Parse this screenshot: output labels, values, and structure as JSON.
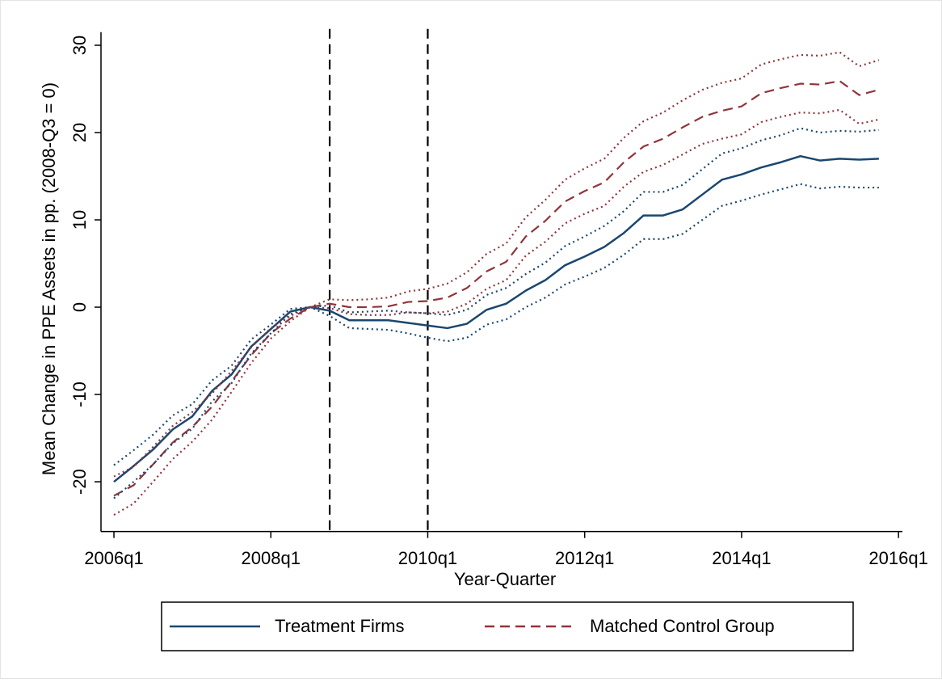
{
  "chart_data": {
    "type": "line",
    "ylabel": "Mean Change in PPE Assets in pp. (2008-Q3 = 0)",
    "xlabel": "Year-Quarter",
    "x": [
      2006,
      2006.25,
      2006.5,
      2006.75,
      2007,
      2007.25,
      2007.5,
      2007.75,
      2008,
      2008.25,
      2008.5,
      2008.75,
      2009,
      2009.25,
      2009.5,
      2009.75,
      2010,
      2010.25,
      2010.5,
      2010.75,
      2011,
      2011.25,
      2011.5,
      2011.75,
      2012,
      2012.25,
      2012.5,
      2012.75,
      2013,
      2013.25,
      2013.5,
      2013.75,
      2014,
      2014.25,
      2014.5,
      2014.75,
      2015,
      2015.25,
      2015.5,
      2015.75
    ],
    "series": [
      {
        "name": "Treatment Firms",
        "color": "#1a476f",
        "style": "solid",
        "values": [
          -20,
          -18.2,
          -16.3,
          -14,
          -12.5,
          -9.6,
          -7.7,
          -4.5,
          -2.5,
          -0.5,
          0,
          -0.4,
          -1.5,
          -1.5,
          -1.5,
          -1.8,
          -2.1,
          -2.4,
          -1.9,
          -0.3,
          0.4,
          1.9,
          3.1,
          4.8,
          5.8,
          6.9,
          8.5,
          10.5,
          10.5,
          11.2,
          12.9,
          14.6,
          15.2,
          16,
          16.6,
          17.3,
          16.8,
          17,
          16.9,
          17
        ]
      },
      {
        "name": "Matched Control Group",
        "color": "#90353b",
        "style": "dashed",
        "values": [
          -21.6,
          -20.4,
          -18,
          -15.5,
          -13.7,
          -11.4,
          -8.5,
          -5.5,
          -3,
          -1.3,
          0,
          0.4,
          0,
          0,
          0.1,
          0.6,
          0.7,
          1.1,
          2.2,
          4.1,
          5.2,
          8.1,
          9.9,
          12.1,
          13.3,
          14.3,
          16.6,
          18.4,
          19.3,
          20.6,
          21.8,
          22.5,
          23,
          24.5,
          25.1,
          25.6,
          25.5,
          25.9,
          24.3,
          24.9
        ]
      },
      {
        "color": "#1a476f",
        "style": "dotted",
        "values": [
          -18.1,
          -16.4,
          -14.6,
          -12.4,
          -11.1,
          -8.4,
          -6.7,
          -3.7,
          -2.0,
          -0.2,
          0,
          0.2,
          -0.6,
          -0.5,
          -0.4,
          -0.6,
          -0.7,
          -0.9,
          -0.3,
          1.4,
          2.2,
          3.8,
          5.1,
          7.0,
          8.1,
          9.3,
          11.0,
          13.2,
          13.2,
          14.0,
          15.8,
          17.6,
          18.2,
          19.1,
          19.7,
          20.5,
          20.0,
          20.2,
          20.1,
          20.3
        ]
      },
      {
        "color": "#1a476f",
        "style": "dotted",
        "values": [
          -21.9,
          -20.0,
          -18.0,
          -15.6,
          -13.9,
          -10.8,
          -8.7,
          -5.3,
          -3.0,
          -0.8,
          0,
          -1.0,
          -2.4,
          -2.5,
          -2.6,
          -3.0,
          -3.5,
          -3.9,
          -3.5,
          -2.0,
          -1.4,
          0.0,
          1.1,
          2.6,
          3.5,
          4.5,
          6.0,
          7.8,
          7.8,
          8.4,
          10.0,
          11.6,
          12.2,
          12.9,
          13.5,
          14.1,
          13.6,
          13.8,
          13.7,
          13.7
        ]
      },
      {
        "color": "#90353b",
        "style": "dotted",
        "values": [
          -19.4,
          -18.3,
          -16.0,
          -13.6,
          -12.0,
          -9.9,
          -7.3,
          -4.6,
          -2.4,
          -1.0,
          0,
          0.9,
          0.8,
          0.9,
          1.1,
          1.8,
          2.1,
          2.7,
          4.0,
          6.1,
          7.3,
          10.3,
          12.3,
          14.6,
          15.9,
          17.0,
          19.4,
          21.3,
          22.3,
          23.7,
          24.9,
          25.7,
          26.2,
          27.8,
          28.4,
          28.9,
          28.8,
          29.2,
          27.6,
          28.3
        ]
      },
      {
        "color": "#90353b",
        "style": "dotted",
        "values": [
          -23.8,
          -22.5,
          -20.0,
          -17.4,
          -15.4,
          -12.9,
          -9.7,
          -6.4,
          -3.6,
          -1.6,
          0,
          -0.1,
          -0.8,
          -0.9,
          -0.9,
          -0.6,
          -0.7,
          -0.5,
          0.4,
          2.1,
          3.1,
          5.9,
          7.5,
          9.6,
          10.7,
          11.6,
          13.8,
          15.5,
          16.3,
          17.5,
          18.7,
          19.3,
          19.8,
          21.2,
          21.8,
          22.3,
          22.2,
          22.6,
          21.0,
          21.5
        ]
      }
    ],
    "vlines": [
      2008.75,
      2010
    ],
    "xlim": [
      2005.835,
      2016.05
    ],
    "ylim": [
      -25.7,
      31.5
    ],
    "xticks": [
      {
        "value": 2006,
        "label": "2006q1"
      },
      {
        "value": 2008,
        "label": "2008q1"
      },
      {
        "value": 2010,
        "label": "2010q1"
      },
      {
        "value": 2012,
        "label": "2012q1"
      },
      {
        "value": 2014,
        "label": "2014q1"
      },
      {
        "value": 2016,
        "label": "2016q1"
      }
    ],
    "yticks": [
      -20,
      -10,
      0,
      10,
      20,
      30
    ],
    "legend": "bottom"
  }
}
